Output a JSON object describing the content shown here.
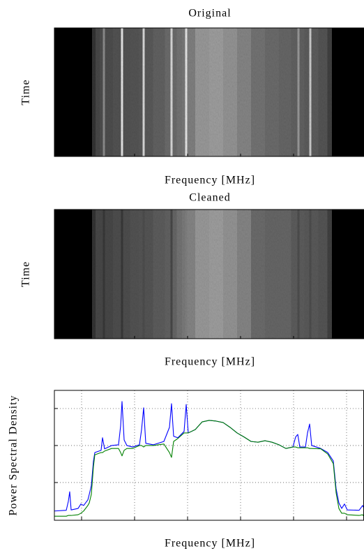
{
  "chart_data": [
    {
      "type": "heatmap",
      "title": "Original",
      "xlabel": "Frequency [MHz]",
      "ylabel": "Time",
      "x": [
        -5.13,
        1.71,
        2.24,
        3.03,
        3.82,
        4.21,
        4.61,
        7.24,
        7.63,
        8.03,
        10.26,
        11.32,
        11.71,
        12.11,
        14.87,
        16.58,
        16.97,
        17.37,
        18.55,
        19.34,
        19.74,
        20.13,
        22.76,
        25.39,
        28.03,
        30.66,
        33.29,
        35.92,
        38.55,
        40.53,
        40.92,
        41.32,
        42.76,
        43.16,
        43.55,
        45.79,
        46.97,
        47.5,
        53.29
      ],
      "values": [
        0,
        0,
        0.2,
        0.28,
        0.3,
        0.55,
        0.3,
        0.32,
        0.9,
        0.32,
        0.33,
        0.34,
        0.85,
        0.35,
        0.38,
        0.42,
        0.85,
        0.42,
        0.45,
        0.47,
        0.9,
        0.5,
        0.6,
        0.62,
        0.58,
        0.52,
        0.45,
        0.42,
        0.4,
        0.38,
        0.6,
        0.38,
        0.36,
        0.8,
        0.36,
        0.33,
        0.25,
        0,
        0
      ],
      "xlim": [
        -5.13,
        53.29
      ],
      "xticks": [
        0,
        10,
        20,
        30,
        40,
        50
      ]
    },
    {
      "type": "heatmap",
      "title": "Cleaned",
      "xlabel": "Frequency [MHz]",
      "ylabel": "Time",
      "x": [
        -5.13,
        1.71,
        2.24,
        3.03,
        3.82,
        4.21,
        4.61,
        7.24,
        7.63,
        8.03,
        10.26,
        11.32,
        11.71,
        12.11,
        14.87,
        16.58,
        16.97,
        17.37,
        18.55,
        19.34,
        19.74,
        20.13,
        22.76,
        25.39,
        28.03,
        30.66,
        33.29,
        35.92,
        38.55,
        40.53,
        40.92,
        41.32,
        42.76,
        43.16,
        43.55,
        45.79,
        46.97,
        47.5,
        53.29
      ],
      "values": [
        0,
        0,
        0.2,
        0.28,
        0.28,
        0.22,
        0.28,
        0.3,
        0.22,
        0.3,
        0.32,
        0.33,
        0.3,
        0.33,
        0.36,
        0.38,
        0.28,
        0.4,
        0.45,
        0.48,
        0.5,
        0.52,
        0.6,
        0.62,
        0.58,
        0.52,
        0.42,
        0.4,
        0.4,
        0.36,
        0.3,
        0.36,
        0.35,
        0.3,
        0.35,
        0.33,
        0.25,
        0,
        0
      ],
      "xlim": [
        -5.13,
        53.29
      ],
      "xticks": [
        0,
        10,
        20,
        30,
        40,
        50
      ]
    },
    {
      "type": "line",
      "xlabel": "Frequency [MHz]",
      "ylabel": "Power Spectral Density",
      "grid": true,
      "x": [
        -5.13,
        -2.89,
        -2.5,
        -2.24,
        -1.97,
        -0.66,
        -0.13,
        0.39,
        1.18,
        1.45,
        1.84,
        2.24,
        2.5,
        3.68,
        3.95,
        4.34,
        5.66,
        6.97,
        7.37,
        7.63,
        8.03,
        8.55,
        9.61,
        10.92,
        11.32,
        11.71,
        12.11,
        13.55,
        15.53,
        16.58,
        16.97,
        17.37,
        18.16,
        19.34,
        19.74,
        20.13,
        21.45,
        22.76,
        24.08,
        25.39,
        26.71,
        28.03,
        29.34,
        30.66,
        31.97,
        33.29,
        34.61,
        35.92,
        37.24,
        38.55,
        39.87,
        40.39,
        40.79,
        41.18,
        42.24,
        42.63,
        43.03,
        43.42,
        45.13,
        46.45,
        47.5,
        48.03,
        48.55,
        49.08,
        49.61,
        50.13,
        52.37,
        53.03,
        53.29
      ],
      "series": [
        {
          "color": "#0000ff",
          "values": [
            0.23,
            0.25,
            0.49,
            0.75,
            0.26,
            0.3,
            0.42,
            0.38,
            0.53,
            0.68,
            0.92,
            1.58,
            1.81,
            1.87,
            2.21,
            1.91,
            2.0,
            2.02,
            2.53,
            3.19,
            2.15,
            2.0,
            1.96,
            2.02,
            2.43,
            3.02,
            2.06,
            2.02,
            2.11,
            2.49,
            3.13,
            2.25,
            2.21,
            2.38,
            3.11,
            2.34,
            2.43,
            2.64,
            2.68,
            2.66,
            2.62,
            2.49,
            2.34,
            2.23,
            2.11,
            2.09,
            2.13,
            2.09,
            2.02,
            1.92,
            1.96,
            2.23,
            2.3,
            1.96,
            1.96,
            2.34,
            2.58,
            2.0,
            1.92,
            1.81,
            1.58,
            0.83,
            0.45,
            0.3,
            0.42,
            0.26,
            0.25,
            0.38,
            0.3
          ]
        },
        {
          "color": "#008000",
          "values": [
            0.09,
            0.09,
            0.11,
            0.11,
            0.11,
            0.13,
            0.17,
            0.23,
            0.38,
            0.45,
            0.68,
            1.43,
            1.75,
            1.81,
            1.81,
            1.85,
            1.92,
            1.92,
            1.81,
            1.72,
            1.87,
            1.92,
            1.92,
            2.0,
            2.0,
            1.96,
            2.0,
            2.0,
            2.04,
            1.81,
            1.68,
            2.11,
            2.19,
            2.34,
            2.34,
            2.34,
            2.43,
            2.64,
            2.68,
            2.66,
            2.62,
            2.49,
            2.34,
            2.23,
            2.11,
            2.09,
            2.13,
            2.09,
            2.02,
            1.92,
            1.96,
            1.96,
            1.94,
            1.94,
            1.94,
            1.94,
            1.92,
            1.92,
            1.91,
            1.77,
            1.51,
            0.72,
            0.3,
            0.17,
            0.17,
            0.13,
            0.11,
            0.13,
            0.08
          ]
        }
      ],
      "xlim": [
        -5.13,
        53.29
      ],
      "xticks": [
        0,
        10,
        20,
        30,
        40,
        50
      ],
      "ylim": [
        -0.02,
        3.49
      ],
      "yticks": [
        1,
        2,
        3
      ]
    }
  ]
}
